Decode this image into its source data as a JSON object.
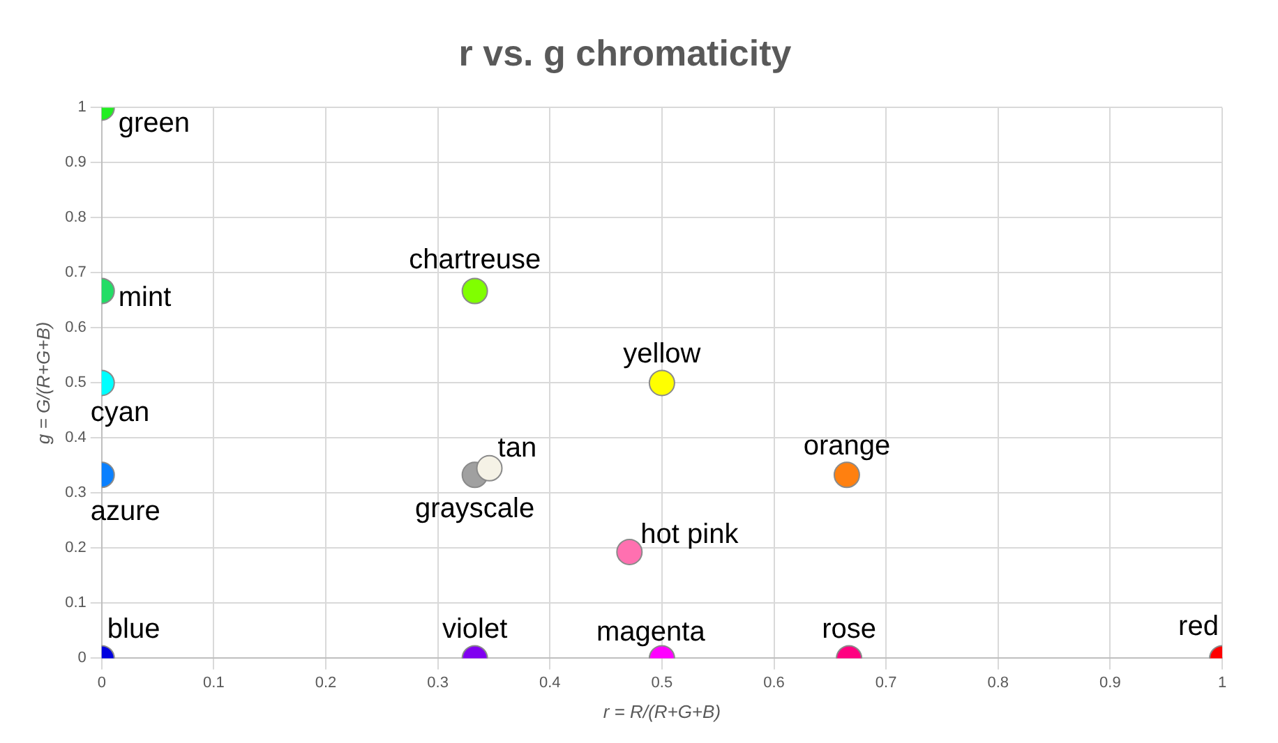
{
  "chart_data": {
    "type": "scatter",
    "title": "r vs. g chromaticity",
    "xlabel": "r = R/(R+G+B)",
    "ylabel": "g = G/(R+G+B)",
    "xlim": [
      0,
      1
    ],
    "ylim": [
      0,
      1
    ],
    "xticks": [
      0,
      0.1,
      0.2,
      0.3,
      0.4,
      0.5,
      0.6,
      0.7,
      0.8,
      0.9,
      1
    ],
    "yticks": [
      0,
      0.1,
      0.2,
      0.3,
      0.4,
      0.5,
      0.6,
      0.7,
      0.8,
      0.9,
      1
    ],
    "grid": true,
    "legend": false,
    "marker": "circle",
    "series": [
      {
        "name": "green",
        "color": "#22ee22",
        "x": [
          0
        ],
        "values": [
          1
        ]
      },
      {
        "name": "mint",
        "color": "#22dd66",
        "x": [
          0
        ],
        "values": [
          0.667
        ]
      },
      {
        "name": "cyan",
        "color": "#00ffff",
        "x": [
          0
        ],
        "values": [
          0.5
        ]
      },
      {
        "name": "azure",
        "color": "#0a80ff",
        "x": [
          0
        ],
        "values": [
          0.333
        ]
      },
      {
        "name": "blue",
        "color": "#0000e0",
        "x": [
          0
        ],
        "values": [
          0
        ]
      },
      {
        "name": "chartreuse",
        "color": "#80ff00",
        "x": [
          0.333
        ],
        "values": [
          0.667
        ]
      },
      {
        "name": "yellow",
        "color": "#ffff00",
        "x": [
          0.5
        ],
        "values": [
          0.5
        ]
      },
      {
        "name": "tan",
        "color": "#f5f2e6",
        "x": [
          0.346
        ],
        "values": [
          0.345
        ]
      },
      {
        "name": "grayscale",
        "color": "#a0a0a0",
        "x": [
          0.333
        ],
        "values": [
          0.333
        ]
      },
      {
        "name": "hot pink",
        "color": "#ff70b0",
        "x": [
          0.471
        ],
        "values": [
          0.193
        ]
      },
      {
        "name": "orange",
        "color": "#ff8010",
        "x": [
          0.665
        ],
        "values": [
          0.333
        ]
      },
      {
        "name": "violet",
        "color": "#8000f0",
        "x": [
          0.333
        ],
        "values": [
          0
        ]
      },
      {
        "name": "magenta",
        "color": "#ff00ff",
        "x": [
          0.5
        ],
        "values": [
          0
        ]
      },
      {
        "name": "rose",
        "color": "#ff0080",
        "x": [
          0.667
        ],
        "values": [
          0
        ]
      },
      {
        "name": "red",
        "color": "#ff0000",
        "x": [
          1
        ],
        "values": [
          0
        ]
      }
    ]
  }
}
